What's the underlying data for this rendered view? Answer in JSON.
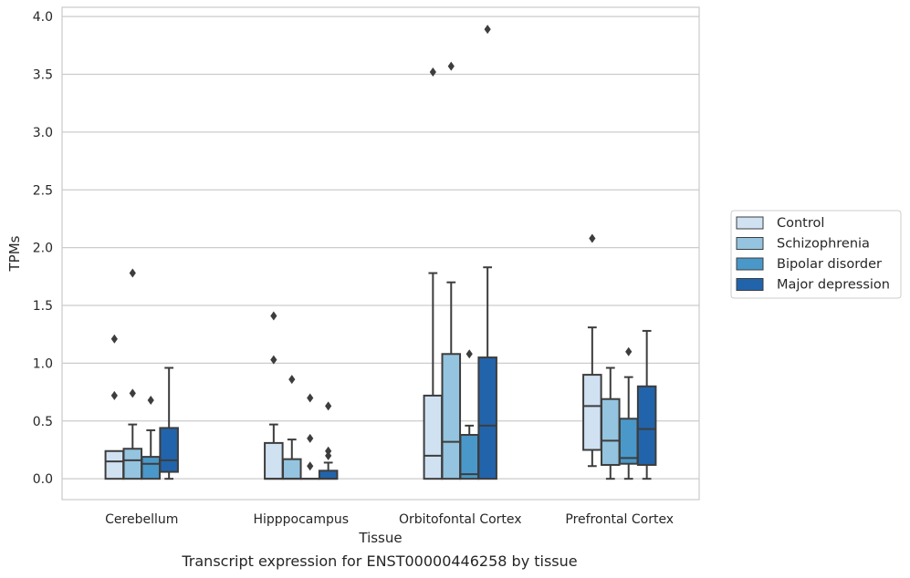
{
  "caption": "Transcript expression for ENST00000446258 by tissue",
  "chart_data": {
    "type": "box",
    "xlabel": "Tissue",
    "ylabel": "TPMs",
    "ylim": [
      -0.18,
      4.08
    ],
    "yticks": [
      0.0,
      0.5,
      1.0,
      1.5,
      2.0,
      2.5,
      3.0,
      3.5,
      4.0
    ],
    "ytick_labels": [
      "0.0",
      "0.5",
      "1.0",
      "1.5",
      "2.0",
      "2.5",
      "3.0",
      "3.5",
      "4.0"
    ],
    "grid": true,
    "legend_position": "outside-right",
    "categories": [
      "Cerebellum",
      "Hipppocampus",
      "Orbitofontal Cortex",
      "Prefrontal Cortex"
    ],
    "series": [
      {
        "name": "Control",
        "color": "#d0e1f2",
        "boxes": [
          {
            "q1": 0.0,
            "median": 0.15,
            "q3": 0.24,
            "whisker_low": 0.0,
            "whisker_high": 0.24,
            "outliers": [
              1.21,
              0.72
            ]
          },
          {
            "q1": 0.0,
            "median": 0.0,
            "q3": 0.31,
            "whisker_low": 0.0,
            "whisker_high": 0.47,
            "outliers": [
              1.41,
              1.03
            ]
          },
          {
            "q1": 0.0,
            "median": 0.2,
            "q3": 0.72,
            "whisker_low": 0.0,
            "whisker_high": 1.78,
            "outliers": [
              3.52
            ]
          },
          {
            "q1": 0.25,
            "median": 0.63,
            "q3": 0.9,
            "whisker_low": 0.11,
            "whisker_high": 1.31,
            "outliers": [
              2.08
            ]
          }
        ]
      },
      {
        "name": "Schizophrenia",
        "color": "#94c4df",
        "boxes": [
          {
            "q1": 0.0,
            "median": 0.16,
            "q3": 0.26,
            "whisker_low": 0.0,
            "whisker_high": 0.47,
            "outliers": [
              1.78,
              0.74
            ]
          },
          {
            "q1": 0.0,
            "median": 0.0,
            "q3": 0.17,
            "whisker_low": 0.0,
            "whisker_high": 0.34,
            "outliers": [
              0.86
            ]
          },
          {
            "q1": 0.0,
            "median": 0.32,
            "q3": 1.08,
            "whisker_low": 0.0,
            "whisker_high": 1.7,
            "outliers": [
              3.57
            ]
          },
          {
            "q1": 0.12,
            "median": 0.33,
            "q3": 0.69,
            "whisker_low": 0.0,
            "whisker_high": 0.96,
            "outliers": []
          }
        ]
      },
      {
        "name": "Bipolar disorder",
        "color": "#4a98c9",
        "boxes": [
          {
            "q1": 0.0,
            "median": 0.13,
            "q3": 0.19,
            "whisker_low": 0.0,
            "whisker_high": 0.42,
            "outliers": [
              0.68
            ]
          },
          {
            "q1": 0.0,
            "median": 0.0,
            "q3": 0.0,
            "whisker_low": 0.0,
            "whisker_high": 0.0,
            "outliers": [
              0.7,
              0.35,
              0.11
            ]
          },
          {
            "q1": 0.0,
            "median": 0.04,
            "q3": 0.38,
            "whisker_low": 0.0,
            "whisker_high": 0.46,
            "outliers": [
              1.08
            ]
          },
          {
            "q1": 0.13,
            "median": 0.18,
            "q3": 0.52,
            "whisker_low": 0.0,
            "whisker_high": 0.88,
            "outliers": [
              1.1
            ]
          }
        ]
      },
      {
        "name": "Major depression",
        "color": "#2164ab",
        "boxes": [
          {
            "q1": 0.06,
            "median": 0.16,
            "q3": 0.44,
            "whisker_low": 0.0,
            "whisker_high": 0.96,
            "outliers": []
          },
          {
            "q1": 0.0,
            "median": 0.0,
            "q3": 0.07,
            "whisker_low": 0.0,
            "whisker_high": 0.14,
            "outliers": [
              0.63,
              0.24,
              0.2
            ]
          },
          {
            "q1": 0.0,
            "median": 0.46,
            "q3": 1.05,
            "whisker_low": 0.0,
            "whisker_high": 1.83,
            "outliers": [
              3.89
            ]
          },
          {
            "q1": 0.12,
            "median": 0.43,
            "q3": 0.8,
            "whisker_low": 0.0,
            "whisker_high": 1.28,
            "outliers": []
          }
        ]
      }
    ]
  }
}
